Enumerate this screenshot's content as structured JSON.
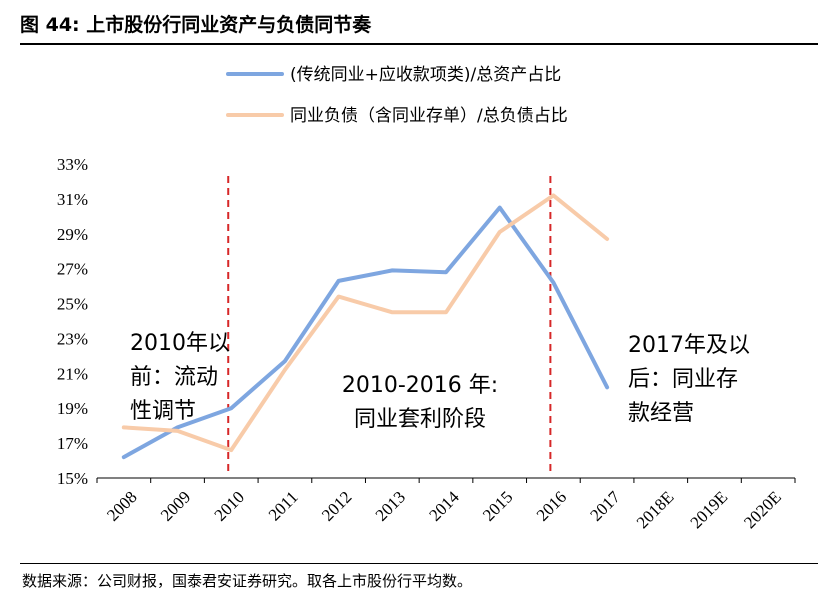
{
  "figure": {
    "title": "图 44:  上市股份行同业资产与负债同节奏",
    "source": "数据来源：公司财报，国泰君安证券研究。取各上市股份行平均数。"
  },
  "colors": {
    "series1": "#7ea6e0",
    "series2": "#f8cba9",
    "divider": "#d62728",
    "axis": "#000000"
  },
  "chart_data": {
    "type": "line",
    "categories": [
      "2008",
      "2009",
      "2010",
      "2011",
      "2012",
      "2013",
      "2014",
      "2015",
      "2016",
      "2017",
      "2018E",
      "2019E",
      "2020E"
    ],
    "series": [
      {
        "name": "(传统同业+应收款项类)/总资产占比",
        "values": [
          16.2,
          17.9,
          19.0,
          21.7,
          26.3,
          26.9,
          26.8,
          30.5,
          26.2,
          20.2,
          null,
          null,
          null
        ]
      },
      {
        "name": "同业负债（含同业存单）/总负债占比",
        "values": [
          17.9,
          17.7,
          16.6,
          21.2,
          25.4,
          24.5,
          24.5,
          29.1,
          31.2,
          28.7,
          null,
          null,
          null
        ]
      }
    ],
    "ylim": [
      15,
      33
    ],
    "yticks": [
      "15%",
      "17%",
      "19%",
      "21%",
      "23%",
      "25%",
      "27%",
      "29%",
      "31%",
      "33%"
    ],
    "yticks_values": [
      15,
      17,
      19,
      21,
      23,
      25,
      27,
      29,
      31,
      33
    ],
    "dividers": [
      "2010/2011",
      "2016/2017"
    ],
    "grid": false,
    "legend_position": "top",
    "annotations": [
      {
        "lines": [
          "2010年以",
          "前：流动",
          "性调节"
        ]
      },
      {
        "lines": [
          "2010-2016 年:",
          "同业套利阶段"
        ]
      },
      {
        "lines": [
          "2017年及以",
          "后：同业存",
          "款经营"
        ]
      }
    ]
  }
}
